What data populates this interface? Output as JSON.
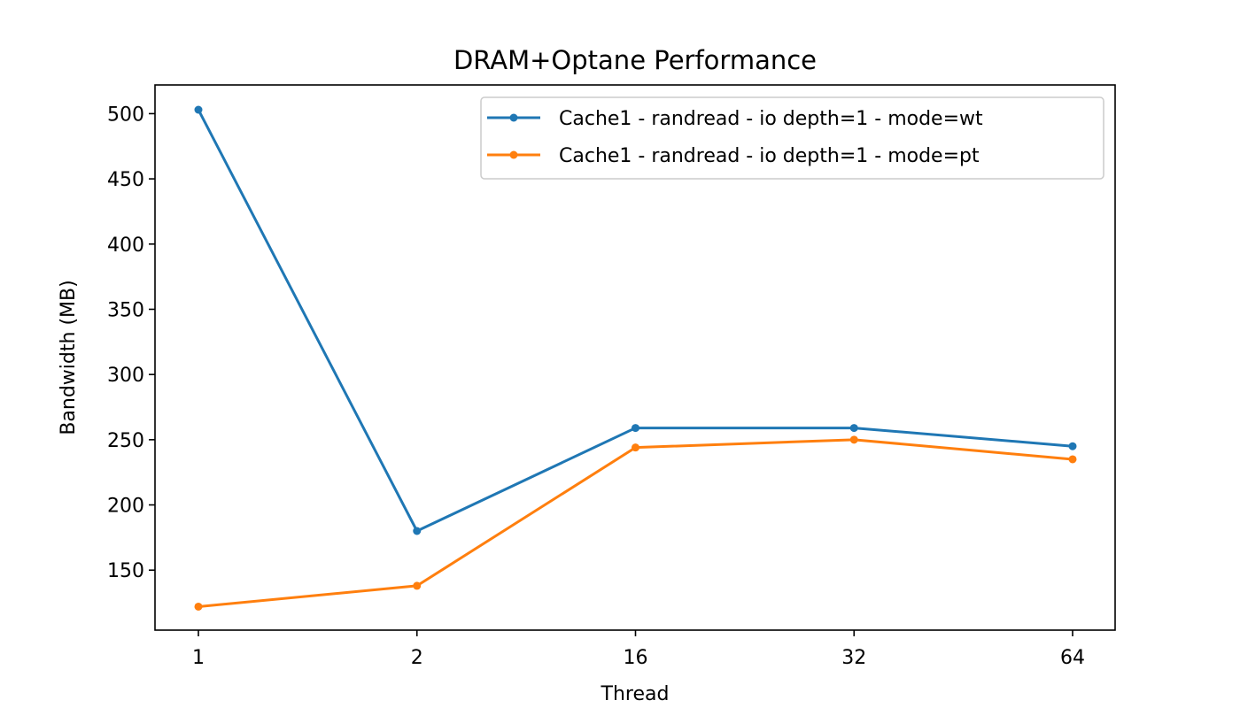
{
  "chart_data": {
    "type": "line",
    "title": "DRAM+Optane Performance",
    "xlabel": "Thread",
    "ylabel": "Bandwidth (MB)",
    "categories": [
      "1",
      "2",
      "16",
      "32",
      "64"
    ],
    "y_ticks": [
      150,
      200,
      250,
      300,
      350,
      400,
      450,
      500
    ],
    "ylim": [
      104,
      522
    ],
    "grid": false,
    "legend_position": "top-right",
    "series": [
      {
        "name": "Cache1 - randread - io depth=1 - mode=wt",
        "color": "#1f77b4",
        "values": [
          503,
          180,
          259,
          259,
          245
        ]
      },
      {
        "name": "Cache1 - randread - io depth=1 - mode=pt",
        "color": "#ff7f0e",
        "values": [
          122,
          138,
          244,
          250,
          235
        ]
      }
    ]
  }
}
